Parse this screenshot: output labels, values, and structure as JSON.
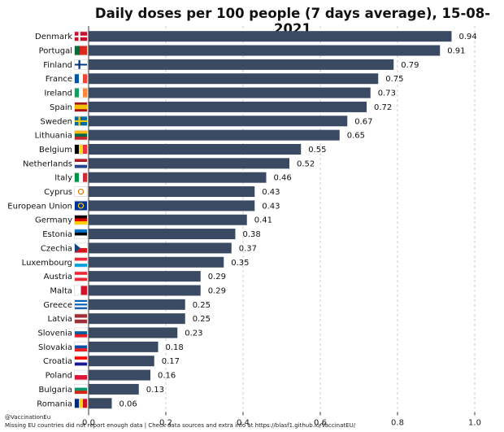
{
  "chart_data": {
    "type": "bar",
    "orientation": "horizontal",
    "title": "Daily doses per 100 people (7 days average), 15-08-2021",
    "categories": [
      "Denmark",
      "Portugal",
      "Finland",
      "France",
      "Ireland",
      "Spain",
      "Sweden",
      "Lithuania",
      "Belgium",
      "Netherlands",
      "Italy",
      "Cyprus",
      "European Union",
      "Germany",
      "Estonia",
      "Czechia",
      "Luxembourg",
      "Austria",
      "Malta",
      "Greece",
      "Latvia",
      "Slovenia",
      "Slovakia",
      "Croatia",
      "Poland",
      "Bulgaria",
      "Romania"
    ],
    "values": [
      0.94,
      0.91,
      0.79,
      0.75,
      0.73,
      0.72,
      0.67,
      0.65,
      0.55,
      0.52,
      0.46,
      0.43,
      0.43,
      0.41,
      0.38,
      0.37,
      0.35,
      0.29,
      0.29,
      0.25,
      0.25,
      0.23,
      0.18,
      0.17,
      0.16,
      0.13,
      0.06
    ],
    "value_labels": [
      "0.94",
      "0.91",
      "0.79",
      "0.75",
      "0.73",
      "0.72",
      "0.67",
      "0.65",
      "0.55",
      "0.52",
      "0.46",
      "0.43",
      "0.43",
      "0.41",
      "0.38",
      "0.37",
      "0.35",
      "0.29",
      "0.29",
      "0.25",
      "0.25",
      "0.23",
      "0.18",
      "0.17",
      "0.16",
      "0.13",
      "0.06"
    ],
    "xlim": [
      0,
      1.0
    ],
    "xticks": [
      "0.0",
      "0.2",
      "0.4",
      "0.6",
      "0.8",
      "1.0"
    ],
    "xlabel": "",
    "ylabel": "",
    "grid": "vertical dashed",
    "bar_color": "#3a4a63"
  },
  "footer": {
    "credit": "@VaccinationEu",
    "note": "Missing EU countries did not report enough data | Check data sources and extra info at https://blasf1.github.io/VaccinatEU/"
  }
}
